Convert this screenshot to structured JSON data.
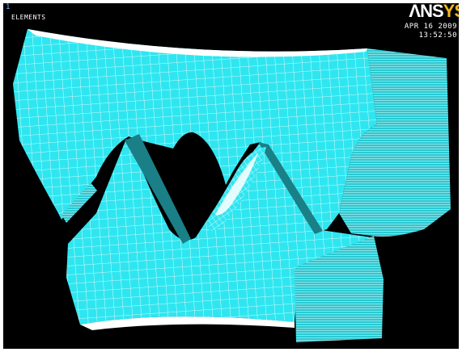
{
  "window": {
    "number": "1",
    "plot_label": "ELEMENTS"
  },
  "logo": {
    "part_white": "ΛNS",
    "part_yellow": "YS",
    "colors": {
      "white": "#ffffff",
      "yellow": "#f2b61b"
    }
  },
  "stamp": {
    "date": "APR 16 2009",
    "time": "13:52:50"
  },
  "colors": {
    "background": "#000000",
    "element_fill": "#2fe6f0",
    "mesh_lines": "#ffffff",
    "side_faces": "#1fb3ba"
  }
}
